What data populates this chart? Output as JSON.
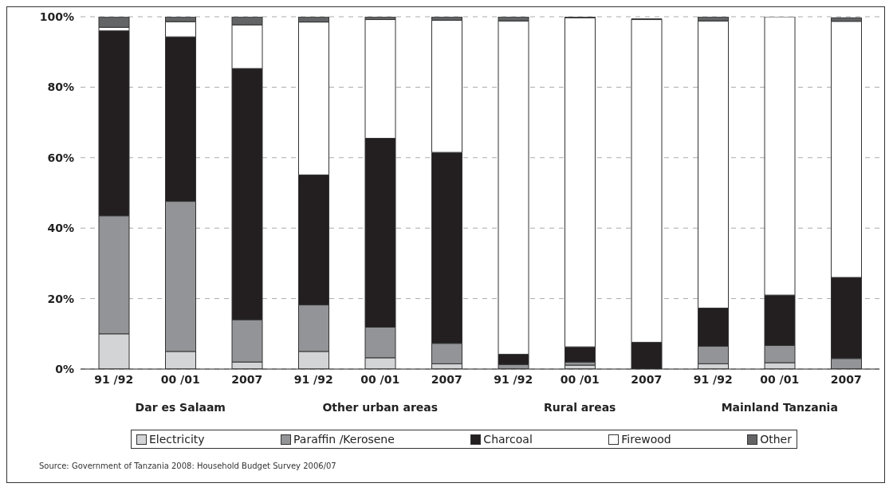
{
  "chart_data": {
    "type": "bar",
    "stacked": true,
    "categories": [
      "91 /92",
      "00 /01",
      "2007",
      "91 /92",
      "00 /01",
      "2007",
      "91 /92",
      "00 /01",
      "2007",
      "91 /92",
      "00 /01",
      "2007"
    ],
    "series": [
      {
        "name": "Electricity",
        "color": "#d3d4d6",
        "values": [
          10,
          5,
          2,
          5,
          3.2,
          1.5,
          0,
          1.1,
          null,
          1.5,
          1.8,
          null
        ]
      },
      {
        "name": "Paraffin /Kerosene",
        "color": "#939497",
        "values": [
          33.5,
          42.6,
          12,
          13.2,
          8.7,
          5.8,
          1.3,
          0.9,
          null,
          5,
          4.9,
          3
        ]
      },
      {
        "name": "Charcoal",
        "color": "#231f20",
        "values": [
          52.5,
          46.7,
          71.3,
          36.9,
          53.6,
          54.2,
          2.9,
          4.3,
          7.6,
          10.8,
          14.3,
          23
        ]
      },
      {
        "name": "Firewood",
        "color": "#ffffff",
        "values": [
          1,
          4.3,
          12.4,
          43.4,
          33.7,
          37.5,
          94.6,
          93.4,
          91.6,
          81.5,
          79,
          72.7
        ]
      },
      {
        "name": "Other",
        "color": "#636466",
        "values": [
          3,
          1.4,
          2.3,
          1.5,
          0.8,
          1,
          1.2,
          0.3,
          0.2,
          1.2,
          0,
          1
        ]
      }
    ],
    "ylim": [
      0,
      100
    ],
    "yticks": [
      {
        "value": 0,
        "label": "0%"
      },
      {
        "value": 20,
        "label": "20%"
      },
      {
        "value": 40,
        "label": "40%"
      },
      {
        "value": 60,
        "label": "60%"
      },
      {
        "value": 80,
        "label": "80%"
      },
      {
        "value": 100,
        "label": "100%"
      }
    ],
    "grid": "y",
    "legend": "bottom",
    "annotations": [
      "Dar es Salaam",
      "Other urban areas",
      "Rural areas",
      "Mainland Tanzania",
      "Source: Government of Tanzania  2008: Household Budget Survey 2006/07"
    ]
  }
}
